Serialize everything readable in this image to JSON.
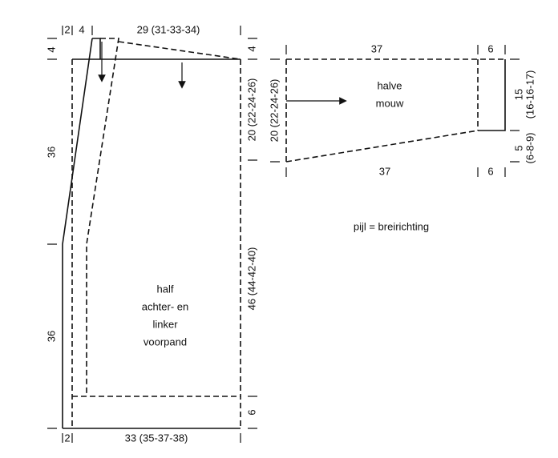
{
  "body": {
    "top": {
      "neck_edge": "2",
      "shoulder_slope": "4",
      "width": "29 (31-33-34)"
    },
    "left": {
      "top": "4",
      "upper": "36",
      "lower": "36"
    },
    "right": {
      "top": "4",
      "armhole": "20 (22-24-26)",
      "side": "46 (44-42-40)",
      "rib": "6"
    },
    "bottom": {
      "edge": "2",
      "width": "33 (35-37-38)"
    },
    "label": [
      "half",
      "achter- en",
      "linker",
      "voorpand"
    ]
  },
  "sleeve": {
    "top": {
      "length": "37",
      "cuff": "6"
    },
    "bottom": {
      "length": "37",
      "cuff": "6"
    },
    "left": "20 (22-24-26)",
    "right_upper": [
      "15",
      "(16-16-17)"
    ],
    "right_lower": [
      "5",
      "(6-8-9)"
    ],
    "label": [
      "halve",
      "mouw"
    ]
  },
  "legend": "pijl = breirichting"
}
